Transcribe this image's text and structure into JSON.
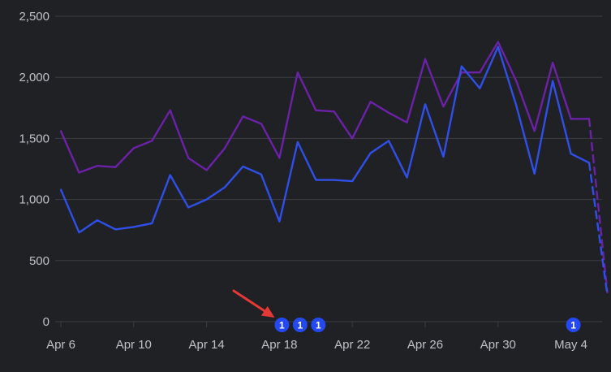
{
  "chart_data": {
    "type": "line",
    "x": [
      "Apr 6",
      "Apr 7",
      "Apr 8",
      "Apr 9",
      "Apr 10",
      "Apr 11",
      "Apr 12",
      "Apr 13",
      "Apr 14",
      "Apr 15",
      "Apr 16",
      "Apr 17",
      "Apr 18",
      "Apr 19",
      "Apr 20",
      "Apr 21",
      "Apr 22",
      "Apr 23",
      "Apr 24",
      "Apr 25",
      "Apr 26",
      "Apr 27",
      "Apr 28",
      "Apr 29",
      "Apr 30",
      "May 1",
      "May 2",
      "May 3",
      "May 4",
      "May 5",
      "May 6"
    ],
    "x_tick_labels": [
      "Apr 6",
      "Apr 10",
      "Apr 14",
      "Apr 18",
      "Apr 22",
      "Apr 26",
      "Apr 30",
      "May 4"
    ],
    "y_tick_labels": [
      "0",
      "500",
      "1,000",
      "1,500",
      "2,000",
      "2,500"
    ],
    "ylim": [
      0,
      2500
    ],
    "grid": true,
    "series": [
      {
        "color": "#6b21a8",
        "values": [
          1560,
          1220,
          1275,
          1265,
          1420,
          1480,
          1730,
          1340,
          1240,
          1420,
          1680,
          1620,
          1340,
          2040,
          1730,
          1720,
          1500,
          1800,
          1710,
          1630,
          2150,
          1760,
          2040,
          2040,
          2290,
          1970,
          1560,
          2120,
          1660,
          1660,
          240
        ]
      },
      {
        "color": "#2f4fe8",
        "values": [
          1080,
          730,
          830,
          755,
          775,
          805,
          1200,
          935,
          1000,
          1100,
          1270,
          1205,
          820,
          1470,
          1160,
          1160,
          1150,
          1380,
          1480,
          1180,
          1780,
          1350,
          2090,
          1910,
          2250,
          1770,
          1210,
          1970,
          1375,
          1300,
          220
        ]
      }
    ],
    "dashed_from_index": 29,
    "annotations": [
      {
        "x": "Apr 18",
        "label": "1"
      },
      {
        "x": "Apr 19",
        "label": "1"
      },
      {
        "x": "Apr 20",
        "label": "1"
      },
      {
        "x": "May 4",
        "label": "1"
      }
    ],
    "annotation_color": "#2449f0",
    "arrow_color": "#e53935",
    "grid_color": "#3c3d40",
    "label_color": "#bdc1c6"
  }
}
